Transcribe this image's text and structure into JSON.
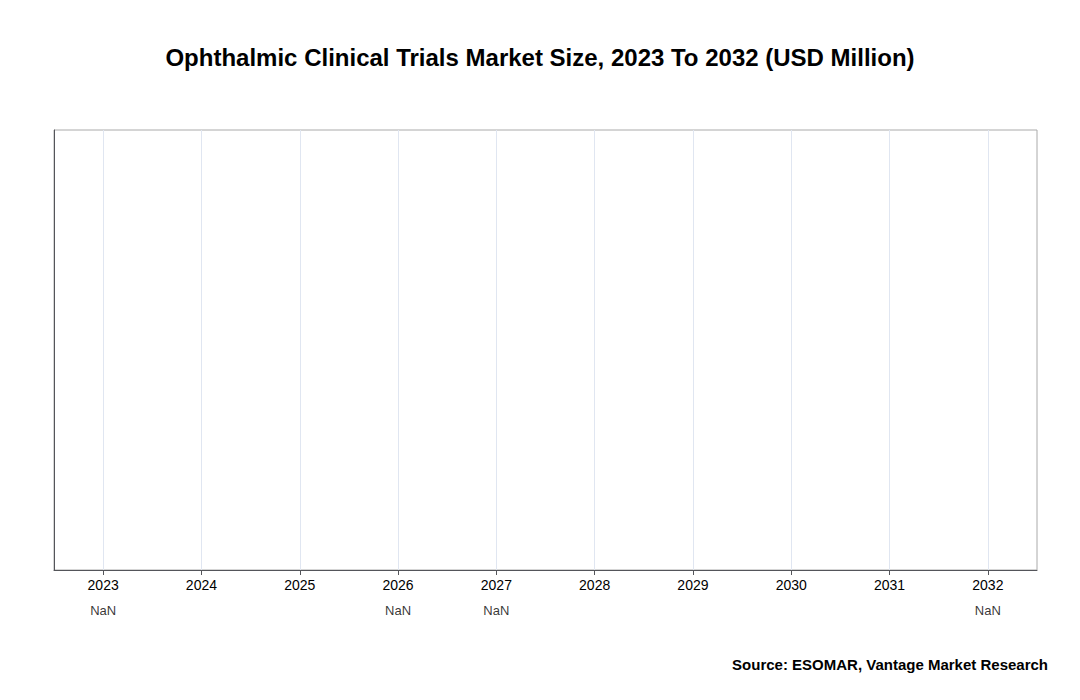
{
  "chart_data": {
    "type": "bar",
    "title": "Ophthalmic Clinical Trials Market Size, 2023 To 2032 (USD Million)",
    "categories": [
      "2023",
      "2024",
      "2025",
      "2026",
      "2027",
      "2028",
      "2029",
      "2030",
      "2031",
      "2032"
    ],
    "ylim": [
      0,
      1
    ],
    "yticks": [],
    "tick_labels": "x",
    "grid": true,
    "annotations": [
      {
        "x": "2023",
        "text": "NaN"
      },
      {
        "x": "2026",
        "text": "NaN"
      },
      {
        "x": "2027",
        "text": "NaN"
      },
      {
        "x": "2032",
        "text": "NaN"
      },
      {
        "text": "Source: ESOMAR, Vantage Market Research"
      }
    ]
  }
}
